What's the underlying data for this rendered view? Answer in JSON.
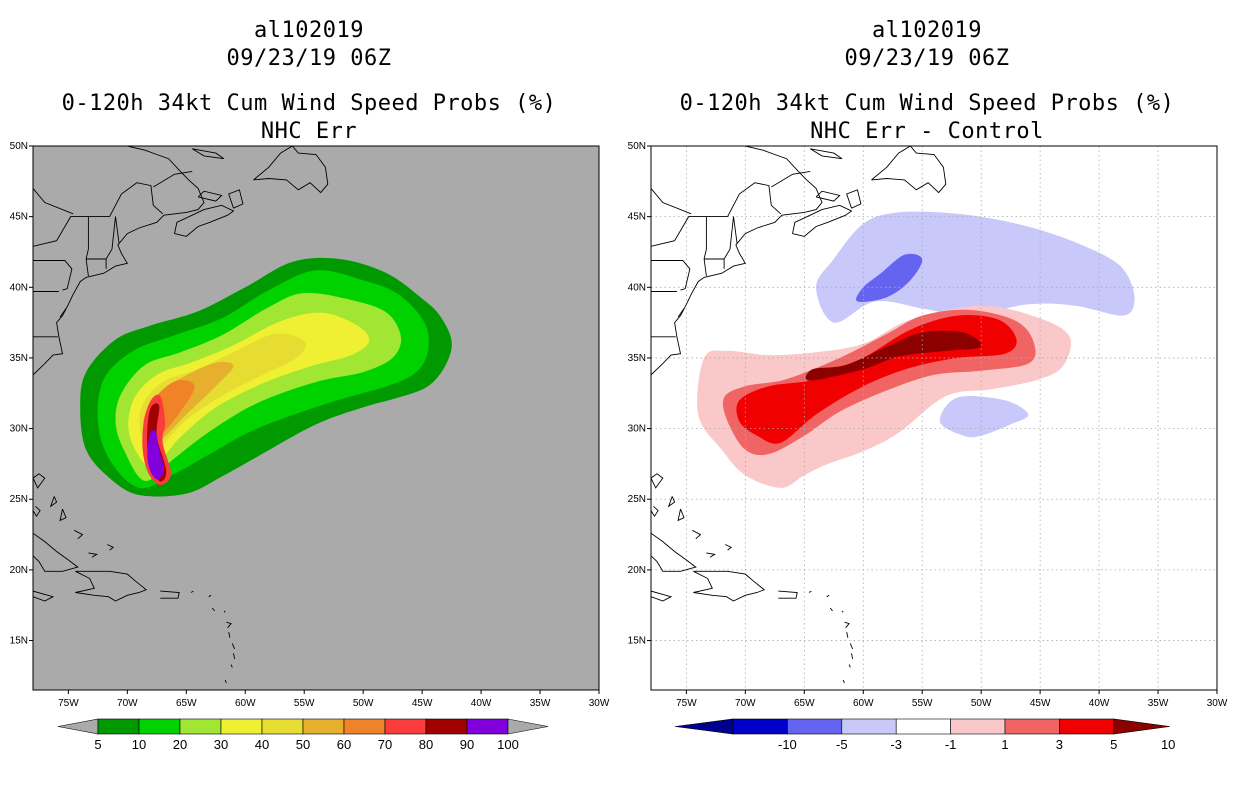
{
  "chart_data": [
    {
      "type": "heatmap",
      "storm_id": "al102019",
      "datetime": "09/23/19 06Z",
      "title": "0-120h 34kt Cum Wind Speed Probs (%)",
      "subtitle": "NHC Err",
      "background_color": "#aaaaaa",
      "grid": false,
      "lon_ticks": [
        "75W",
        "70W",
        "65W",
        "60W",
        "55W",
        "50W",
        "45W",
        "40W",
        "35W",
        "30W"
      ],
      "lat_ticks": [
        "15N",
        "20N",
        "25N",
        "30N",
        "35N",
        "40N",
        "45N",
        "50N"
      ],
      "lon_range": [
        -78,
        -30
      ],
      "lat_range": [
        11.5,
        50
      ],
      "colorbar": {
        "levels": [
          "5",
          "10",
          "20",
          "30",
          "40",
          "50",
          "60",
          "70",
          "80",
          "90",
          "100"
        ],
        "colors": [
          "#009a00",
          "#00d200",
          "#a0e632",
          "#f0f032",
          "#e6dc32",
          "#e6af2d",
          "#f08228",
          "#fa3c3c",
          "#a00000",
          "#8200dc"
        ],
        "end_color": "#aaaaaa"
      },
      "contours": [
        {
          "level": 5,
          "color": "#009a00",
          "points": [
            [
              -69,
              25.3
            ],
            [
              -65,
              25.4
            ],
            [
              -62,
              26.6
            ],
            [
              -59,
              28
            ],
            [
              -54,
              30.3
            ],
            [
              -50,
              31.5
            ],
            [
              -47,
              32.2
            ],
            [
              -44.5,
              33
            ],
            [
              -43,
              34.5
            ],
            [
              -42.5,
              36.2
            ],
            [
              -43.5,
              38
            ],
            [
              -45,
              39.2
            ],
            [
              -48,
              41
            ],
            [
              -52,
              42
            ],
            [
              -56,
              41.8
            ],
            [
              -60,
              40
            ],
            [
              -64,
              38.3
            ],
            [
              -68,
              37.3
            ],
            [
              -71,
              36.3
            ],
            [
              -73.5,
              34
            ],
            [
              -74,
              31.5
            ],
            [
              -73.5,
              28.5
            ],
            [
              -71.5,
              26.5
            ]
          ]
        },
        {
          "level": 10,
          "color": "#00d200",
          "points": [
            [
              -69,
              25.8
            ],
            [
              -66,
              26.8
            ],
            [
              -63,
              28.2
            ],
            [
              -59,
              30
            ],
            [
              -53,
              31.8
            ],
            [
              -48,
              33
            ],
            [
              -45.5,
              34
            ],
            [
              -44.5,
              35.5
            ],
            [
              -44.8,
              37.5
            ],
            [
              -47,
              39.5
            ],
            [
              -50,
              40.5
            ],
            [
              -54,
              41.2
            ],
            [
              -58,
              39.8
            ],
            [
              -62,
              37.8
            ],
            [
              -66,
              36.6
            ],
            [
              -69.5,
              35.5
            ],
            [
              -72,
              33.5
            ],
            [
              -72.5,
              30.5
            ],
            [
              -71.5,
              27.8
            ]
          ]
        },
        {
          "level": 20,
          "color": "#a0e632",
          "points": [
            [
              -68.5,
              26.3
            ],
            [
              -66,
              27.9
            ],
            [
              -63,
              29.8
            ],
            [
              -59,
              31.8
            ],
            [
              -54,
              33.3
            ],
            [
              -50,
              34
            ],
            [
              -47.5,
              35
            ],
            [
              -46.8,
              36.5
            ],
            [
              -48,
              38.2
            ],
            [
              -51,
              39.1
            ],
            [
              -55,
              39.6
            ],
            [
              -58,
              38.6
            ],
            [
              -62,
              36.6
            ],
            [
              -65.5,
              35.4
            ],
            [
              -68.5,
              34.5
            ],
            [
              -70.5,
              32.5
            ],
            [
              -71,
              30.5
            ],
            [
              -70.3,
              28.5
            ]
          ]
        },
        {
          "level": 30,
          "color": "#f0f032",
          "points": [
            [
              -68,
              27.3
            ],
            [
              -65.5,
              29.4
            ],
            [
              -62.5,
              31.5
            ],
            [
              -58.5,
              33.2
            ],
            [
              -54.5,
              34.4
            ],
            [
              -51,
              35.2
            ],
            [
              -49.5,
              36.2
            ],
            [
              -50.5,
              37.3
            ],
            [
              -53.5,
              38.2
            ],
            [
              -57,
              37.6
            ],
            [
              -61,
              35.9
            ],
            [
              -64.5,
              34.7
            ],
            [
              -67.5,
              33.8
            ],
            [
              -69.5,
              32
            ],
            [
              -69.8,
              29.5
            ]
          ]
        },
        {
          "level": 40,
          "color": "#e6dc32",
          "points": [
            [
              -67.8,
              28.3
            ],
            [
              -65,
              30.6
            ],
            [
              -62,
              32.3
            ],
            [
              -58.5,
              33.8
            ],
            [
              -55.5,
              35.1
            ],
            [
              -55,
              36.2
            ],
            [
              -57.5,
              36.7
            ],
            [
              -61,
              35.4
            ],
            [
              -64,
              34.2
            ],
            [
              -67,
              33.3
            ],
            [
              -68.8,
              31.5
            ],
            [
              -68.8,
              29.5
            ]
          ]
        },
        {
          "level": 50,
          "color": "#e6af2d",
          "points": [
            [
              -67.5,
              29
            ],
            [
              -65,
              31
            ],
            [
              -62.5,
              33
            ],
            [
              -61,
              34.4
            ],
            [
              -62.3,
              34.7
            ],
            [
              -64.5,
              34
            ],
            [
              -67.2,
              32.6
            ],
            [
              -68.5,
              31
            ],
            [
              -68.5,
              29.8
            ]
          ]
        },
        {
          "level": 60,
          "color": "#f08228",
          "points": [
            [
              -67.4,
              29.5
            ],
            [
              -65.5,
              31.2
            ],
            [
              -64.3,
              33
            ],
            [
              -65.8,
              33.4
            ],
            [
              -67.5,
              32.3
            ],
            [
              -68.3,
              30.8
            ]
          ]
        },
        {
          "level": 70,
          "color": "#fa3c3c",
          "points": [
            [
              -67.2,
              26
            ],
            [
              -66.3,
              26.8
            ],
            [
              -67,
              29
            ],
            [
              -66.8,
              30.5
            ],
            [
              -67.2,
              32.3
            ],
            [
              -68,
              32
            ],
            [
              -68.6,
              30.5
            ],
            [
              -68.7,
              28.5
            ],
            [
              -68.2,
              26.8
            ]
          ]
        },
        {
          "level": 80,
          "color": "#a00000",
          "points": [
            [
              -67.3,
              26.3
            ],
            [
              -66.7,
              27
            ],
            [
              -67.5,
              29.5
            ],
            [
              -67.3,
              31.6
            ],
            [
              -68,
              31.5
            ],
            [
              -68.3,
              30
            ],
            [
              -68.2,
              28
            ]
          ]
        },
        {
          "level": 90,
          "color": "#8200dc",
          "points": [
            [
              -67.4,
              26.4
            ],
            [
              -66.9,
              27.1
            ],
            [
              -67.3,
              28.5
            ],
            [
              -67.6,
              29.8
            ],
            [
              -68.1,
              29.6
            ],
            [
              -68.3,
              28
            ],
            [
              -68,
              26.9
            ]
          ]
        }
      ]
    },
    {
      "type": "heatmap",
      "storm_id": "al102019",
      "datetime": "09/23/19 06Z",
      "title": "0-120h 34kt Cum Wind Speed Probs (%)",
      "subtitle": "NHC Err - Control",
      "background_color": "#ffffff",
      "grid": true,
      "lon_ticks": [
        "75W",
        "70W",
        "65W",
        "60W",
        "55W",
        "50W",
        "45W",
        "40W",
        "35W",
        "30W"
      ],
      "lat_ticks": [
        "15N",
        "20N",
        "25N",
        "30N",
        "35N",
        "40N",
        "45N",
        "50N"
      ],
      "lon_range": [
        -78,
        -30
      ],
      "lat_range": [
        11.5,
        50
      ],
      "colorbar": {
        "levels": [
          "-10",
          "-5",
          "-3",
          "-1",
          "1",
          "3",
          "5",
          "10"
        ],
        "colors": [
          "#0000c8",
          "#6464f0",
          "#c8c8fa",
          "#ffffff",
          "#fac8c8",
          "#f06464",
          "#f00000"
        ],
        "low_end_color": "#00008c",
        "high_end_color": "#8c0000"
      },
      "contours": [
        {
          "level": -1,
          "color": "#c8c8fa",
          "points": [
            [
              -62.5,
              37.5
            ],
            [
              -59,
              39
            ],
            [
              -55,
              38.5
            ],
            [
              -51,
              38
            ],
            [
              -46,
              38.8
            ],
            [
              -42,
              38.7
            ],
            [
              -38,
              38
            ],
            [
              -37,
              39
            ],
            [
              -37.5,
              40.7
            ],
            [
              -39,
              42
            ],
            [
              -43,
              43.5
            ],
            [
              -47,
              44.5
            ],
            [
              -52,
              45.2
            ],
            [
              -57,
              45.3
            ],
            [
              -60,
              44.5
            ],
            [
              -62.5,
              42
            ],
            [
              -64,
              40
            ]
          ]
        },
        {
          "level": -3,
          "color": "#6464f0",
          "points": [
            [
              -60.5,
              39
            ],
            [
              -58,
              39.3
            ],
            [
              -56,
              40.5
            ],
            [
              -55,
              42
            ],
            [
              -56.5,
              42.3
            ],
            [
              -58.5,
              41
            ],
            [
              -60,
              40
            ]
          ]
        },
        {
          "level": -1,
          "color": "#c8c8fa",
          "points": [
            [
              -53.5,
              30.5
            ],
            [
              -51.5,
              29.5
            ],
            [
              -50,
              29.5
            ],
            [
              -47.5,
              30.3
            ],
            [
              -46,
              31
            ],
            [
              -48,
              32
            ],
            [
              -52,
              32.2
            ]
          ]
        },
        {
          "level": 1,
          "color": "#fac8c8",
          "points": [
            [
              -74,
              31
            ],
            [
              -72,
              28.5
            ],
            [
              -70,
              26.7
            ],
            [
              -67,
              25.8
            ],
            [
              -65,
              26.7
            ],
            [
              -63,
              27.5
            ],
            [
              -60,
              28.4
            ],
            [
              -57,
              29.7
            ],
            [
              -53,
              32.3
            ],
            [
              -49,
              32.8
            ],
            [
              -45,
              33.5
            ],
            [
              -43,
              34.5
            ],
            [
              -42.5,
              36.5
            ],
            [
              -45,
              37.8
            ],
            [
              -50,
              38.7
            ],
            [
              -56,
              37.7
            ],
            [
              -60,
              36
            ],
            [
              -64,
              35.4
            ],
            [
              -68,
              35.2
            ],
            [
              -71.5,
              35.5
            ],
            [
              -73.5,
              35
            ]
          ]
        },
        {
          "level": 3,
          "color": "#f06464",
          "points": [
            [
              -71.5,
              30.5
            ],
            [
              -70,
              28.5
            ],
            [
              -68,
              28.2
            ],
            [
              -65,
              29.5
            ],
            [
              -62,
              31.2
            ],
            [
              -58,
              32.7
            ],
            [
              -54,
              33.8
            ],
            [
              -50,
              34.1
            ],
            [
              -46,
              34.6
            ],
            [
              -45.5,
              36
            ],
            [
              -47,
              37.6
            ],
            [
              -51,
              38.4
            ],
            [
              -55,
              38
            ],
            [
              -58,
              36.7
            ],
            [
              -62,
              35
            ],
            [
              -66.5,
              33.5
            ],
            [
              -70,
              33
            ],
            [
              -71.8,
              32.2
            ]
          ]
        },
        {
          "level": 5,
          "color": "#f00000",
          "points": [
            [
              -70.5,
              30.5
            ],
            [
              -69,
              29.5
            ],
            [
              -67,
              29
            ],
            [
              -64,
              31
            ],
            [
              -60,
              33
            ],
            [
              -56,
              34.3
            ],
            [
              -52,
              35
            ],
            [
              -48,
              35.3
            ],
            [
              -47,
              36.3
            ],
            [
              -48.5,
              37.7
            ],
            [
              -52,
              38
            ],
            [
              -56,
              37
            ],
            [
              -60,
              35
            ],
            [
              -64,
              33.5
            ],
            [
              -68,
              33
            ],
            [
              -70.5,
              32
            ]
          ]
        },
        {
          "level": 10,
          "color": "#8c0000",
          "points": [
            [
              -64.5,
              33.4
            ],
            [
              -60,
              34.2
            ],
            [
              -57,
              35.1
            ],
            [
              -53,
              35.5
            ],
            [
              -50,
              35.8
            ],
            [
              -51.5,
              36.8
            ],
            [
              -55,
              36.8
            ],
            [
              -58,
              35.8
            ],
            [
              -61.5,
              34.5
            ],
            [
              -64.3,
              34.2
            ]
          ]
        }
      ]
    }
  ]
}
